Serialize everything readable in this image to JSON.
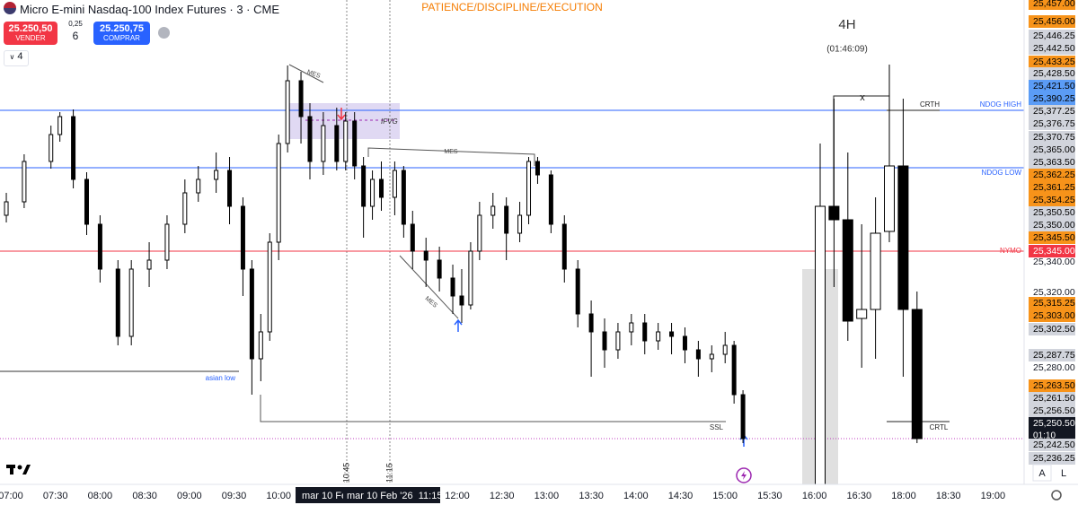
{
  "header": {
    "symbol": "Micro E-mini Nasdaq-100 Index Futures · 3 · CME",
    "sell_price": "25.250,50",
    "sell_label": "VENDER",
    "spread": "0,25",
    "quantity": "6",
    "buy_price": "25.250,75",
    "buy_label": "COMPRAR",
    "indicators": "4"
  },
  "chart_data": [
    {
      "type": "candlestick",
      "title": "PATIENCE/DISCIPLINE/EXECUTION",
      "ylim": [
        25225,
        25495
      ],
      "up_color": "#ffffff",
      "down_color": "#000000",
      "x": [
        "06:57",
        "07:09",
        "07:27",
        "07:33",
        "07:42",
        "07:51",
        "08:00",
        "08:12",
        "08:21",
        "08:33",
        "08:45",
        "08:57",
        "09:06",
        "09:18",
        "09:27",
        "09:36",
        "09:42",
        "09:48",
        "09:54",
        "10:00",
        "10:06",
        "10:15",
        "10:21",
        "10:30",
        "10:39",
        "10:45",
        "10:51",
        "10:57",
        "11:03",
        "11:09",
        "11:18",
        "11:24",
        "11:30",
        "11:39",
        "11:48",
        "11:57",
        "12:03",
        "12:09",
        "12:15",
        "12:24",
        "12:33",
        "12:42",
        "12:48",
        "12:54",
        "13:03",
        "13:12",
        "13:21",
        "13:30",
        "13:39",
        "13:48",
        "13:57",
        "14:06",
        "14:15",
        "14:24",
        "14:33",
        "14:42",
        "14:51",
        "15:00",
        "15:06",
        "15:12"
      ],
      "open": [
        25375,
        25382.5,
        25405,
        25420,
        25430,
        25395,
        25370,
        25345,
        25307.5,
        25345,
        25350,
        25370,
        25387.5,
        25395,
        25400,
        25380,
        25345,
        25295,
        25310,
        25360,
        25415,
        25450,
        25430,
        25405,
        25425,
        25405,
        25427.5,
        25402.5,
        25380,
        25395,
        25385,
        25400,
        25370,
        25355,
        25350,
        25340,
        25330,
        25325,
        25355,
        25375,
        25380,
        25365,
        25375,
        25405,
        25397.5,
        25370,
        25345,
        25320,
        25310,
        25300,
        25310,
        25315,
        25305,
        25310,
        25307.5,
        25300,
        25295,
        25297.5,
        25302.5,
        25275
      ],
      "high": [
        25387.5,
        25409,
        25425,
        25432.5,
        25434,
        25399,
        25375,
        25350,
        25350,
        25360,
        25375,
        25395,
        25402.5,
        25410,
        25407.5,
        25385,
        25350,
        25320,
        25365,
        25420,
        25458.5,
        25455,
        25437.5,
        25432.5,
        25435,
        25432.5,
        25432.5,
        25407.5,
        25400,
        25405,
        25405,
        25402.5,
        25377.5,
        25362.5,
        25357.5,
        25347.5,
        25345,
        25360,
        25382.5,
        25387.5,
        25385,
        25382.5,
        25407.5,
        25407.5,
        25400,
        25375,
        25350,
        25327.5,
        25317.5,
        25315,
        25320,
        25320,
        25315,
        25315,
        25312.5,
        25305,
        25302.5,
        25310,
        25305,
        25277.5
      ],
      "low": [
        25371,
        25379,
        25401,
        25416,
        25390,
        25364,
        25337.5,
        25302.5,
        25302.5,
        25335,
        25345,
        25365,
        25382.5,
        25387.5,
        25370,
        25330,
        25275,
        25282.5,
        25305,
        25350,
        25410,
        25415,
        25395,
        25397.5,
        25400,
        25400,
        25395,
        25362.5,
        25372.5,
        25377.5,
        25375,
        25362.5,
        25345,
        25335,
        25332.5,
        25320,
        25315,
        25322.5,
        25350,
        25367.5,
        25350,
        25360,
        25370,
        25392.5,
        25365,
        25337.5,
        25312.5,
        25285,
        25290,
        25295,
        25302.5,
        25297.5,
        25300,
        25297.5,
        25292.5,
        25285,
        25287.5,
        25292.5,
        25270,
        25248
      ],
      "close": [
        25382.5,
        25405,
        25420,
        25430,
        25395,
        25370,
        25345,
        25307.5,
        25345,
        25350,
        25370,
        25387.5,
        25395,
        25400,
        25380,
        25345,
        25295,
        25310,
        25360,
        25415,
        25450,
        25430,
        25405,
        25425,
        25405,
        25427.5,
        25402.5,
        25380,
        25395,
        25385,
        25400,
        25370,
        25355,
        25350,
        25340,
        25330,
        25325,
        25355,
        25375,
        25380,
        25365,
        25375,
        25405,
        25397.5,
        25370,
        25345,
        25320,
        25310,
        25300,
        25310,
        25315,
        25305,
        25310,
        25307.5,
        25300,
        25295,
        25297.5,
        25302.5,
        25275,
        25250.5
      ],
      "xticks": [
        "07:00",
        "07:30",
        "08:00",
        "08:30",
        "09:00",
        "09:30",
        "10:00",
        "12:00",
        "12:30",
        "13:00",
        "13:30",
        "14:00",
        "14:30",
        "15:00",
        "15:30",
        "16:00",
        "16:30",
        "18:00",
        "18:30",
        "19:00"
      ]
    },
    {
      "type": "candlestick",
      "title": "4H",
      "subtitle": "(01:46:09)",
      "ylim": [
        25225,
        25495
      ],
      "up_color": "#ffffff",
      "down_color": "#000000",
      "open": [
        25225,
        25380,
        25372.5,
        25317.5,
        25322.5,
        25366,
        25402.5,
        25322.5
      ],
      "high": [
        25415,
        25440,
        25410,
        25370,
        25385,
        25459,
        25440,
        25332.5
      ],
      "low": [
        25225,
        25335,
        25305,
        25290,
        25295,
        25360,
        25285,
        25248
      ],
      "close": [
        25380,
        25372.5,
        25316,
        25322.5,
        25365,
        25402.5,
        25322.5,
        25250.5
      ]
    }
  ],
  "annotations": {
    "mes_1": "MES",
    "mes_2": "MES",
    "mes_3": "MES",
    "ifvg": "IFVG",
    "asian_low": "asian low",
    "ssl": "SSL",
    "x_mark": "x",
    "crth": "CRTH",
    "crtl": "CRTL",
    "ndog_high": "NDOG HIGH",
    "ndog_low": "NDOG LOW",
    "nymo": "NYMO",
    "vline_1": "10:45",
    "vline_2": "11:15"
  },
  "crosshair": {
    "date_1": "mar 10 Fe",
    "date_2": "mar 10 Feb '26  11:15",
    "countdown": "01:10"
  },
  "price_axis": [
    {
      "label": "25,457.00",
      "bg": "#f7931a",
      "fg": "#000000"
    },
    {
      "label": "25,456.00",
      "bg": "#f7931a",
      "fg": "#000000"
    },
    {
      "label": "25,446.25",
      "bg": "#d1d4dc",
      "fg": "#000000"
    },
    {
      "label": "25,442.50",
      "bg": "#d1d4dc",
      "fg": "#000000"
    },
    {
      "label": "25,433.25",
      "bg": "#f7931a",
      "fg": "#000000"
    },
    {
      "label": "25,428.50",
      "bg": "#d1d4dc",
      "fg": "#000000"
    },
    {
      "label": "25,421.50",
      "bg": "#5b9cf6",
      "fg": "#000000"
    },
    {
      "label": "25,390.25",
      "bg": "#5b9cf6",
      "fg": "#000000"
    },
    {
      "label": "25,377.25",
      "bg": "#d1d4dc",
      "fg": "#000000"
    },
    {
      "label": "25,376.75",
      "bg": "#d1d4dc",
      "fg": "#000000"
    },
    {
      "label": "25,370.75",
      "bg": "#d1d4dc",
      "fg": "#000000"
    },
    {
      "label": "25,365.00",
      "bg": "#d1d4dc",
      "fg": "#000000"
    },
    {
      "label": "25,363.50",
      "bg": "#d1d4dc",
      "fg": "#000000"
    },
    {
      "label": "25,362.25",
      "bg": "#f7931a",
      "fg": "#000000"
    },
    {
      "label": "25,361.25",
      "bg": "#f7931a",
      "fg": "#000000"
    },
    {
      "label": "25,354.25",
      "bg": "#f7931a",
      "fg": "#000000"
    },
    {
      "label": "25,350.50",
      "bg": "#d1d4dc",
      "fg": "#000000"
    },
    {
      "label": "25,350.00",
      "bg": "#d1d4dc",
      "fg": "#000000"
    },
    {
      "label": "25,345.50",
      "bg": "#f7931a",
      "fg": "#000000"
    },
    {
      "label": "25,345.00",
      "bg": "#f23645",
      "fg": "#ffffff"
    },
    {
      "label": "25,340.00",
      "fg": "#131722"
    },
    {
      "label": "25,320.00",
      "fg": "#131722"
    },
    {
      "label": "25,315.25",
      "bg": "#f7931a",
      "fg": "#000000"
    },
    {
      "label": "25,303.00",
      "bg": "#f7931a",
      "fg": "#000000"
    },
    {
      "label": "25,302.50",
      "bg": "#d1d4dc",
      "fg": "#000000"
    },
    {
      "label": "25,287.75",
      "bg": "#d1d4dc",
      "fg": "#000000"
    },
    {
      "label": "25,280.00",
      "fg": "#131722"
    },
    {
      "label": "25,263.50",
      "bg": "#f7931a",
      "fg": "#000000"
    },
    {
      "label": "25,261.50",
      "bg": "#d1d4dc",
      "fg": "#000000"
    },
    {
      "label": "25,256.50",
      "bg": "#d1d4dc",
      "fg": "#000000"
    },
    {
      "label": "25,250.50",
      "bg": "#131722",
      "fg": "#ffffff"
    },
    {
      "label": "25,242.50",
      "bg": "#d1d4dc",
      "fg": "#000000"
    },
    {
      "label": "25,236.25",
      "bg": "#d1d4dc",
      "fg": "#000000"
    }
  ],
  "footer": {
    "auto": "A",
    "log": "L"
  }
}
